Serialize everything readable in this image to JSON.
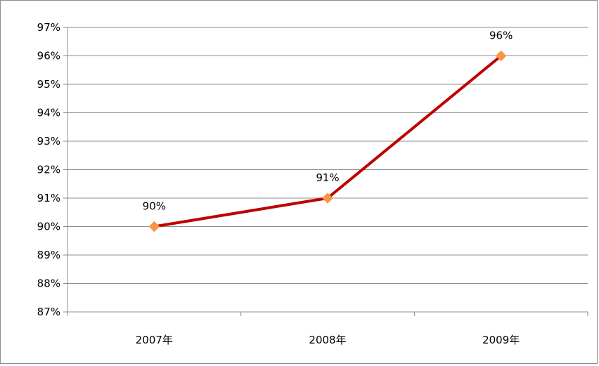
{
  "chart_data": {
    "type": "line",
    "categories": [
      "2007年",
      "2008年",
      "2009年"
    ],
    "series": [
      {
        "values": [
          90,
          91,
          96
        ],
        "data_labels": [
          "90%",
          "91%",
          "96%"
        ],
        "line_color": "#c00000",
        "marker_color": "#f79646",
        "marker": "diamond"
      }
    ],
    "title": "",
    "xlabel": "",
    "ylabel": "",
    "ylim": [
      87,
      97
    ],
    "y_ticks": [
      87,
      88,
      89,
      90,
      91,
      92,
      93,
      94,
      95,
      96,
      97
    ],
    "y_tick_labels": [
      "87%",
      "88%",
      "89%",
      "90%",
      "91%",
      "92%",
      "93%",
      "94%",
      "95%",
      "96%",
      "97%"
    ],
    "grid": true,
    "legend": "none"
  }
}
